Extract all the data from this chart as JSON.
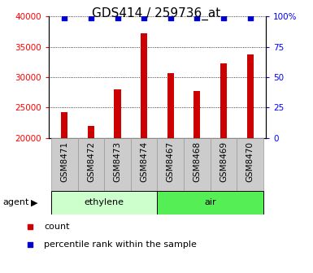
{
  "title": "GDS414 / 259736_at",
  "samples": [
    "GSM8471",
    "GSM8472",
    "GSM8473",
    "GSM8474",
    "GSM8467",
    "GSM8468",
    "GSM8469",
    "GSM8470"
  ],
  "counts": [
    24200,
    21900,
    28000,
    37200,
    30600,
    27700,
    32300,
    33800
  ],
  "percentiles": [
    99,
    99,
    99,
    99,
    99,
    99,
    99,
    99
  ],
  "groups": [
    {
      "label": "ethylene",
      "start": 0,
      "end": 4,
      "color": "#ccffcc"
    },
    {
      "label": "air",
      "start": 4,
      "end": 8,
      "color": "#55ee55"
    }
  ],
  "group_label": "agent",
  "ylim_left": [
    20000,
    40000
  ],
  "ylim_right": [
    0,
    100
  ],
  "yticks_left": [
    20000,
    25000,
    30000,
    35000,
    40000
  ],
  "yticks_right": [
    0,
    25,
    50,
    75,
    100
  ],
  "bar_color": "#cc0000",
  "percentile_color": "#0000cc",
  "bg_color": "#ffffff",
  "title_fontsize": 11,
  "tick_fontsize": 7.5,
  "label_fontsize": 8,
  "xtick_bg_color": "#cccccc",
  "xtick_border_color": "#999999"
}
